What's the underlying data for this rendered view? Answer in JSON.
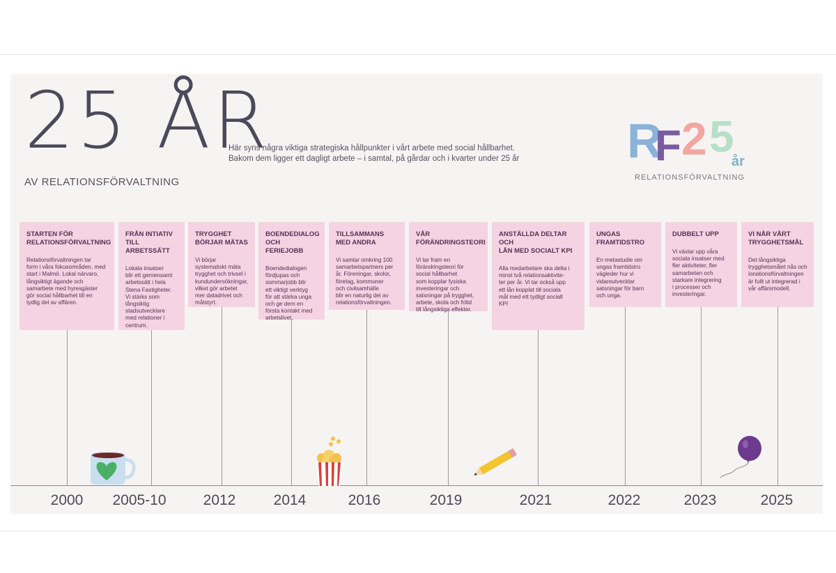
{
  "header": {
    "big_title": "25 ÅR",
    "subtitle": "AV RELATIONSFÖRVALTNING",
    "intro_line1": "Här syns några viktiga strategiska hållpunkter i vårt arbete med social hållbarhet.",
    "intro_line2": "Bakom dem ligger ett dagligt arbete – i samtal, på gårdar och i kvarter under 25 år"
  },
  "logo": {
    "letters": [
      "R",
      "F",
      "2",
      "5"
    ],
    "suffix": "år",
    "caption": "RELATIONSFÖRVALTNING",
    "colors": [
      "#8bb3d9",
      "#7a5aa0",
      "#f2a7a0",
      "#b7e0c7"
    ]
  },
  "milestones": [
    {
      "year": "2000",
      "title": "STARTEN FÖR\nRELATIONSFÖRVALTNING",
      "text": "Relationsförvaltningen tar\nform i våra fokusområden, med\nstart i Malmö. Lokal närvaro,\nlångsiktigt ägande och\nsamarbete med hyresgäster\ngör social hållbarhet till en\ntydlig del av affären."
    },
    {
      "year": "2005-10",
      "title": "FRÅN INTIATIV\nTILL ARBETSSÄTT",
      "text": "Lokala insatser\nblir ett gemensamt\narbetssätt i hela\nStena Fastigheter.\nVi stärks som\nlångsiktig\nstadsutvecklare\nmed relationer i\ncentrum."
    },
    {
      "year": "2012",
      "title": "TRYGGHET\nBÖRJAR MÄTAS",
      "text": "Vi börjar\nsystematiskt mäta\ntrygghet och trivsel i\nkundundersökningar,\nvilket gör arbetet\nmer datadrivet och\nmålstyrt."
    },
    {
      "year": "2014",
      "title": "BOENDEDIALOG\nOCH FERIEJOBB",
      "text": "Boendedialogen\nfördjupas och\nsommarjobb blir\nett viktigt verktyg\nför att stärka unga\noch ge dem en\nförsta kontakt med\narbetslivet."
    },
    {
      "year": "2016",
      "title": "TILLSAMMANS\nMED ANDRA",
      "text": "Vi samlar omkring 100\nsamarbetspartners per\når. Föreningar, skolor,\nföretag, kommuner\noch civilsamhälle\nblir en naturlig del av\nrelationsförvaltningen."
    },
    {
      "year": "2019",
      "title": "VÅR\nFÖRÄNDRINGSTEORI",
      "text": "Vi tar fram en\nförändringsteori för\nsocial hållbarhet\nsom kopplar fysiska\ninvesteringar och\nsatsningar på trygghet,\narbete, skola och fritid\ntill långsiktiga effekter."
    },
    {
      "year": "2021",
      "title": "ANSTÄLLDA DELTAR OCH\nLÅN MED SOCIALT KPI",
      "text": "Alla medarbetare ska delta i\nminst två relationsaktivite-\nter per år. Vi tar också upp\nett lån kopplat till sociala\nmål med ett tydligt socialt\nKPI"
    },
    {
      "year": "2022",
      "title": "UNGAS\nFRAMTIDSTRO",
      "text": "En metastudie om\nungas framtidstro\nvägleder hur vi\nvidareutvecklar\nsatsningar för barn\noch unga."
    },
    {
      "year": "2023",
      "title": "DUBBELT UPP",
      "text": "Vi växlar upp våra\nsociala insatser med\nfler aktiviteter, fler\nsamarbeten och\nstarkare integrering\ni processer och\ninvesteringar."
    },
    {
      "year": "2025",
      "title": "VI NÅR VÅRT\nTRYGGHETSMÅL",
      "text": "Det långsiktiga\ntrygghetsmålet nås och\nionationsförvaltningen\när fullt ut integrerad i\nvår affärsmodell."
    }
  ],
  "colors": {
    "card_bg": "#f5d3e2",
    "card_text": "#5a2f55",
    "panel_bg": "#f6f4f2",
    "title_gray": "#4a4a5a"
  }
}
